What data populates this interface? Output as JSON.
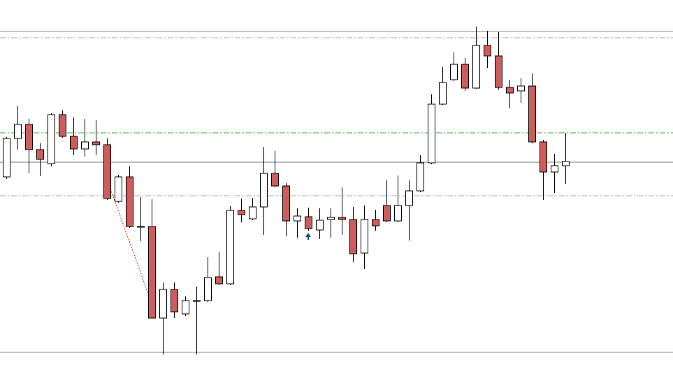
{
  "chart_data": {
    "type": "candlestick",
    "ylim": [
      0,
      555
    ],
    "up_color": "#ffffff",
    "down_color": "#cd5c5c",
    "outline_color": "#000000",
    "open": [
      302,
      357,
      377,
      341,
      321,
      391,
      360,
      342,
      352,
      348,
      267,
      302,
      231,
      231,
      100,
      141,
      106,
      125,
      125,
      159,
      149,
      254,
      242,
      259,
      307,
      289,
      239,
      245,
      226,
      241,
      244,
      241,
      193,
      241,
      261,
      239,
      261,
      282,
      322,
      406,
      441,
      463,
      429,
      490,
      475,
      430,
      425,
      432,
      352,
      309,
      318
    ],
    "high": [
      359,
      403,
      385,
      350,
      393,
      397,
      387,
      385,
      383,
      357,
      305,
      317,
      273,
      270,
      151,
      151,
      131,
      145,
      187,
      195,
      260,
      271,
      272,
      345,
      339,
      293,
      257,
      258,
      257,
      257,
      287,
      259,
      261,
      255,
      297,
      304,
      297,
      333,
      420,
      459,
      480,
      472,
      517,
      511,
      509,
      441,
      443,
      450,
      355,
      335,
      365
    ],
    "low": [
      299,
      341,
      307,
      303,
      317,
      358,
      333,
      331,
      333,
      269,
      265,
      229,
      210,
      100,
      48,
      100,
      103,
      48,
      123,
      147,
      147,
      237,
      240,
      219,
      287,
      217,
      215,
      225,
      213,
      215,
      219,
      180,
      170,
      225,
      237,
      237,
      211,
      280,
      320,
      405,
      439,
      425,
      428,
      458,
      427,
      400,
      408,
      350,
      269,
      279,
      292
    ],
    "close": [
      357,
      377,
      341,
      327,
      391,
      360,
      342,
      352,
      348,
      271,
      302,
      231,
      230,
      100,
      141,
      109,
      125,
      125,
      158,
      149,
      254,
      248,
      259,
      307,
      289,
      239,
      246,
      228,
      240,
      244,
      241,
      192,
      241,
      232,
      239,
      261,
      282,
      322,
      406,
      437,
      463,
      429,
      490,
      475,
      430,
      422,
      432,
      352,
      309,
      318,
      324
    ],
    "levels": [
      {
        "value": 510,
        "style": "solid",
        "color": "#888888"
      },
      {
        "value": 501,
        "style": "dashdot",
        "color": "#aaaaaa"
      },
      {
        "value": 365,
        "style": "dashdot",
        "color": "#33aa33"
      },
      {
        "value": 323,
        "style": "solid",
        "color": "#777777"
      },
      {
        "value": 275,
        "style": "dashdot",
        "color": "#aaaaaa"
      },
      {
        "value": 51,
        "style": "solid",
        "color": "#888888"
      }
    ]
  }
}
